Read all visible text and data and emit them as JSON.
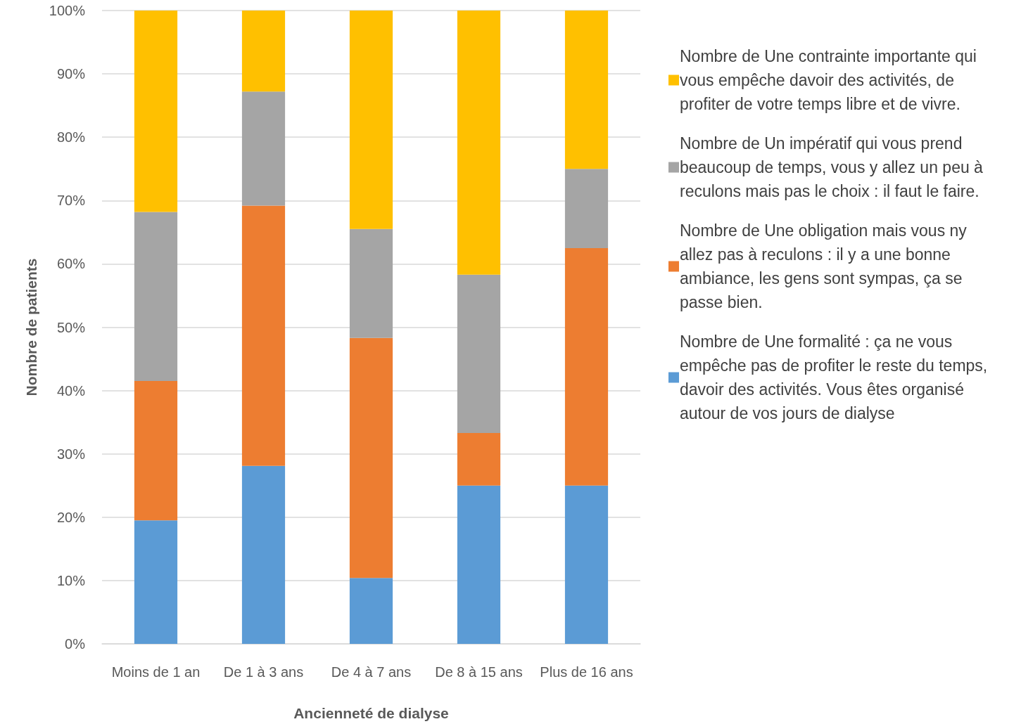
{
  "chart_data": {
    "type": "bar",
    "stacked": true,
    "xlabel": "Ancienneté de dialyse",
    "ylabel": "Nombre de patients",
    "categories": [
      "Moins de 1 an",
      "De 1 à 3 ans",
      "De 4 à 7 ans",
      "De 8 à 15 ans",
      "Plus de 16 ans"
    ],
    "series": [
      {
        "name": "Nombre de Une formalité : ça ne vous empêche pas de profiter le reste du temps, davoir des activités. Vous êtes organisé autour de vos jours de dialyse",
        "color": "#5b9bd5",
        "values": [
          19.5,
          28.1,
          10.4,
          25.0,
          25.0
        ]
      },
      {
        "name": "Nombre de Une obligation mais vous ny allez pas à reculons : il y a une bonne ambiance, les gens sont sympas, ça se passe bien.",
        "color": "#ed7d31",
        "values": [
          22.0,
          41.1,
          37.9,
          8.3,
          37.5
        ]
      },
      {
        "name": "Nombre de Un impératif qui vous prend beaucoup de temps, vous y allez un peu à reculons mais pas le choix : il faut le faire.",
        "color": "#a5a5a5",
        "values": [
          26.7,
          18.0,
          17.2,
          25.0,
          12.5
        ]
      },
      {
        "name": "Nombre de Une contrainte importante qui vous empêche davoir des activités, de profiter de votre temps libre et de vivre.",
        "color": "#ffc000",
        "values": [
          31.8,
          12.8,
          34.5,
          41.7,
          25.0
        ]
      }
    ],
    "ylim": [
      0,
      100
    ],
    "yticks": [
      {
        "value": 0,
        "label": "0%"
      },
      {
        "value": 10,
        "label": "10%"
      },
      {
        "value": 20,
        "label": "20%"
      },
      {
        "value": 30,
        "label": "30%"
      },
      {
        "value": 40,
        "label": "40%"
      },
      {
        "value": 50,
        "label": "50%"
      },
      {
        "value": 60,
        "label": "60%"
      },
      {
        "value": 70,
        "label": "70%"
      },
      {
        "value": 80,
        "label": "80%"
      },
      {
        "value": 90,
        "label": "90%"
      },
      {
        "value": 100,
        "label": "100%"
      }
    ],
    "grid": "y",
    "legend": "right"
  }
}
